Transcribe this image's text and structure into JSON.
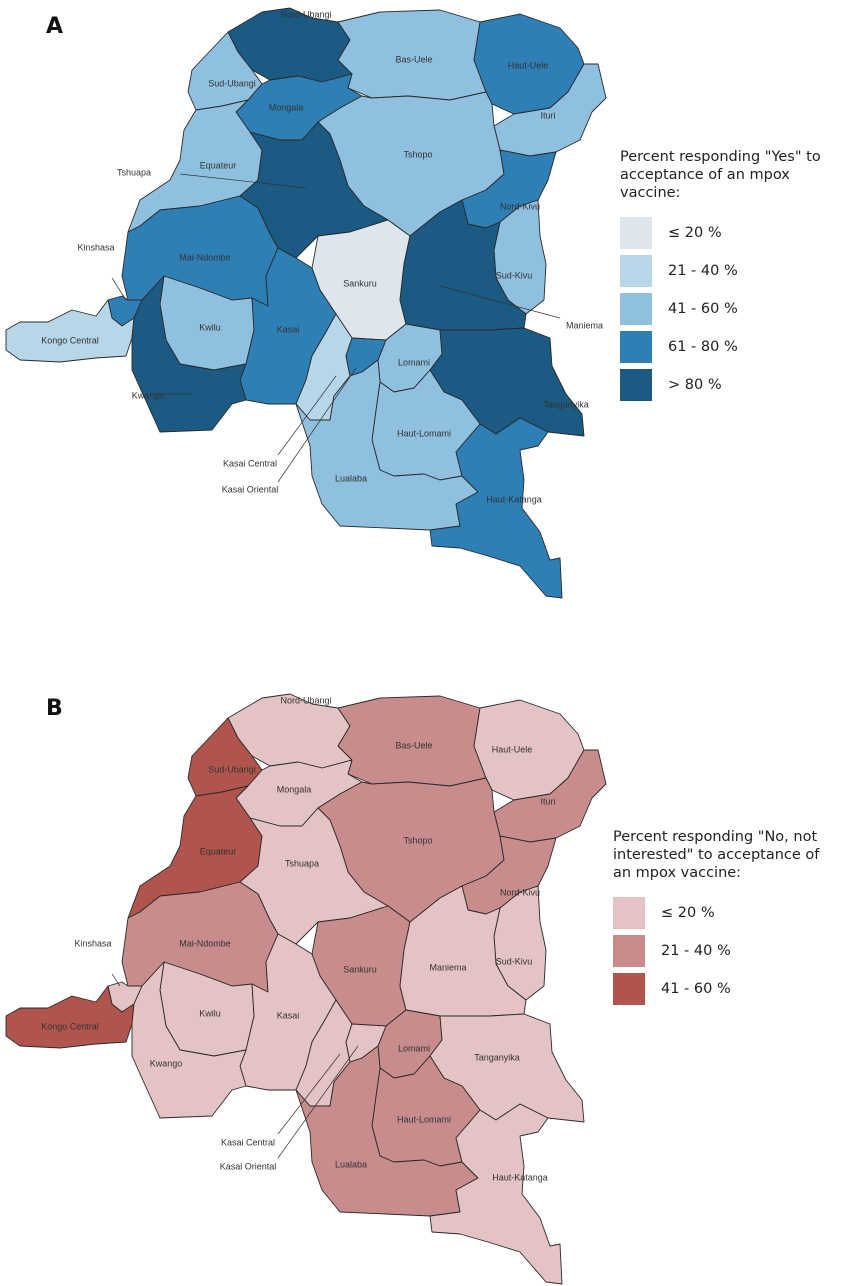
{
  "panel_a": {
    "letter": "A",
    "legend_title": "Percent responding \"Yes\" to acceptance of an mpox vaccine:",
    "legend": [
      {
        "label": "≤ 20 %",
        "color": "#dce6ec"
      },
      {
        "label": "21 - 40 %",
        "color": "#b7d6e8"
      },
      {
        "label": "41 - 60 %",
        "color": "#8fc0df"
      },
      {
        "label": "61 - 80 %",
        "color": "#2e7fb5"
      },
      {
        "label": "> 80 %",
        "color": "#1b5a82"
      }
    ],
    "provinces": [
      {
        "name": "Nord-Ubangi",
        "category": "> 80 %"
      },
      {
        "name": "Sud-Ubangi",
        "category": "41 - 60 %"
      },
      {
        "name": "Bas-Uele",
        "category": "41 - 60 %"
      },
      {
        "name": "Haut-Uele",
        "category": "61 - 80 %"
      },
      {
        "name": "Mongala",
        "category": "61 - 80 %"
      },
      {
        "name": "Ituri",
        "category": "41 - 60 %"
      },
      {
        "name": "Equateur",
        "category": "41 - 60 %"
      },
      {
        "name": "Tshopo",
        "category": "41 - 60 %"
      },
      {
        "name": "Tshuapa",
        "category": "> 80 %"
      },
      {
        "name": "Nord-Kivu",
        "category": "61 - 80 %"
      },
      {
        "name": "Mai-Ndombe",
        "category": "61 - 80 %"
      },
      {
        "name": "Kinshasa",
        "category": "61 - 80 %"
      },
      {
        "name": "Sankuru",
        "category": "≤ 20 %"
      },
      {
        "name": "Sud-Kivu",
        "category": "41 - 60 %"
      },
      {
        "name": "Maniema",
        "category": "> 80 %"
      },
      {
        "name": "Kwilu",
        "category": "41 - 60 %"
      },
      {
        "name": "Kasai",
        "category": "61 - 80 %"
      },
      {
        "name": "Kongo Central",
        "category": "21 - 40 %"
      },
      {
        "name": "Lomami",
        "category": "41 - 60 %"
      },
      {
        "name": "Kwango",
        "category": "> 80 %"
      },
      {
        "name": "Tanganyika",
        "category": "> 80 %"
      },
      {
        "name": "Haut-Lomami",
        "category": "41 - 60 %"
      },
      {
        "name": "Kasai Central",
        "category": "21 - 40 %"
      },
      {
        "name": "Kasai Oriental",
        "category": "61 - 80 %"
      },
      {
        "name": "Lualaba",
        "category": "41 - 60 %"
      },
      {
        "name": "Haut-Katanga",
        "category": "61 - 80 %"
      }
    ]
  },
  "panel_b": {
    "letter": "B",
    "legend_title": "Percent responding \"No, not interested\" to acceptance of an mpox vaccine:",
    "legend": [
      {
        "label": "≤ 20 %",
        "color": "#e3c3c3"
      },
      {
        "label": "21 - 40 %",
        "color": "#c98c8c"
      },
      {
        "label": "41 - 60 %",
        "color": "#b0554d"
      }
    ],
    "provinces": [
      {
        "name": "Nord-Ubangi",
        "category": "≤ 20 %"
      },
      {
        "name": "Sud-Ubangi",
        "category": "41 - 60 %"
      },
      {
        "name": "Bas-Uele",
        "category": "21 - 40 %"
      },
      {
        "name": "Haut-Uele",
        "category": "≤ 20 %"
      },
      {
        "name": "Mongala",
        "category": "≤ 20 %"
      },
      {
        "name": "Ituri",
        "category": "21 - 40 %"
      },
      {
        "name": "Equateur",
        "category": "41 - 60 %"
      },
      {
        "name": "Tshopo",
        "category": "21 - 40 %"
      },
      {
        "name": "Tshuapa",
        "category": "≤ 20 %"
      },
      {
        "name": "Nord-Kivu",
        "category": "21 - 40 %"
      },
      {
        "name": "Mai-Ndombe",
        "category": "21 - 40 %"
      },
      {
        "name": "Kinshasa",
        "category": "≤ 20 %"
      },
      {
        "name": "Sankuru",
        "category": "21 - 40 %"
      },
      {
        "name": "Sud-Kivu",
        "category": "≤ 20 %"
      },
      {
        "name": "Maniema",
        "category": "≤ 20 %"
      },
      {
        "name": "Kwilu",
        "category": "≤ 20 %"
      },
      {
        "name": "Kasai",
        "category": "≤ 20 %"
      },
      {
        "name": "Kongo Central",
        "category": "41 - 60 %"
      },
      {
        "name": "Lomami",
        "category": "21 - 40 %"
      },
      {
        "name": "Kwango",
        "category": "≤ 20 %"
      },
      {
        "name": "Tanganyika",
        "category": "≤ 20 %"
      },
      {
        "name": "Haut-Lomami",
        "category": "21 - 40 %"
      },
      {
        "name": "Kasai Central",
        "category": "≤ 20 %"
      },
      {
        "name": "Kasai Oriental",
        "category": "≤ 20 %"
      },
      {
        "name": "Lualaba",
        "category": "21 - 40 %"
      },
      {
        "name": "Haut-Katanga",
        "category": "≤ 20 %"
      }
    ]
  }
}
